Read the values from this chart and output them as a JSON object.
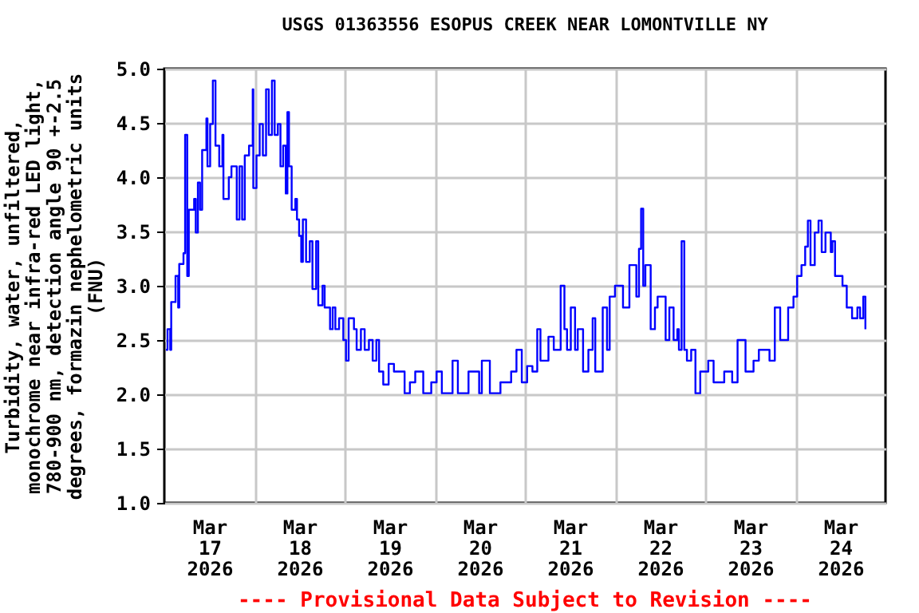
{
  "chart_data": {
    "type": "step",
    "title": "USGS 01363556 ESOPUS CREEK NEAR LOMONTVILLE NY",
    "ylabel": "Turbidity, water, unfiltered,\nmonochrome near infra-red LED light,\n780-900 nm, detection angle 90 +-2.5\ndegrees, formazin nephelometric units\n(FNU)",
    "annotations": [
      "---- Provisional Data Subject to Revision ----"
    ],
    "xlim": [
      "2026-03-17T00:00",
      "2026-03-25T00:00"
    ],
    "xticks": [
      {
        "value": "2026-03-17T12:00",
        "label": "Mar\n17\n2026"
      },
      {
        "value": "2026-03-18T12:00",
        "label": "Mar\n18\n2026"
      },
      {
        "value": "2026-03-19T12:00",
        "label": "Mar\n19\n2026"
      },
      {
        "value": "2026-03-20T12:00",
        "label": "Mar\n20\n2026"
      },
      {
        "value": "2026-03-21T12:00",
        "label": "Mar\n21\n2026"
      },
      {
        "value": "2026-03-22T12:00",
        "label": "Mar\n22\n2026"
      },
      {
        "value": "2026-03-23T12:00",
        "label": "Mar\n23\n2026"
      },
      {
        "value": "2026-03-24T12:00",
        "label": "Mar\n24\n2026"
      },
      {
        "value": "2026-03-18T00:00",
        "label": null
      },
      {
        "value": "2026-03-19T00:00",
        "label": null
      },
      {
        "value": "2026-03-20T00:00",
        "label": null
      },
      {
        "value": "2026-03-21T00:00",
        "label": null
      },
      {
        "value": "2026-03-22T00:00",
        "label": null
      },
      {
        "value": "2026-03-23T00:00",
        "label": null
      },
      {
        "value": "2026-03-24T00:00",
        "label": null
      }
    ],
    "ylim": [
      1,
      5
    ],
    "yticks": [
      {
        "value": 1,
        "label": "1.0"
      },
      {
        "value": 1.5,
        "label": "1.5"
      },
      {
        "value": 2,
        "label": "2.0"
      },
      {
        "value": 2.5,
        "label": "2.5"
      },
      {
        "value": 3,
        "label": "3.0"
      },
      {
        "value": 3.5,
        "label": "3.5"
      },
      {
        "value": 4,
        "label": "4.0"
      },
      {
        "value": 4.5,
        "label": "4.5"
      },
      {
        "value": 5,
        "label": "5.0"
      }
    ],
    "grid": true,
    "series": [
      {
        "color": "#0000ff",
        "x": [
          "2026-03-17T00:26",
          "2026-03-17T00:51",
          "2026-03-17T01:34",
          "2026-03-17T01:50",
          "2026-03-17T02:59",
          "2026-03-17T03:41",
          "2026-03-17T03:58",
          "2026-03-17T05:06",
          "2026-03-17T05:32",
          "2026-03-17T06:06",
          "2026-03-17T06:31",
          "2026-03-17T07:56",
          "2026-03-17T08:22",
          "2026-03-17T08:56",
          "2026-03-17T09:30",
          "2026-03-17T10:04",
          "2026-03-17T11:12",
          "2026-03-17T11:29",
          "2026-03-17T12:12",
          "2026-03-17T12:55",
          "2026-03-17T13:37",
          "2026-03-17T14:37",
          "2026-03-17T15:28",
          "2026-03-17T15:44",
          "2026-03-17T17:10",
          "2026-03-17T17:52",
          "2026-03-17T19:17",
          "2026-03-17T20:00",
          "2026-03-17T20:43",
          "2026-03-17T21:25",
          "2026-03-17T22:33",
          "2026-03-17T23:32",
          "2026-03-17T23:41",
          "2026-03-18T00:32",
          "2026-03-18T01:23",
          "2026-03-18T02:14",
          "2026-03-18T03:05",
          "2026-03-18T03:48",
          "2026-03-18T04:39",
          "2026-03-18T05:22",
          "2026-03-18T06:13",
          "2026-03-18T06:55",
          "2026-03-18T07:38",
          "2026-03-18T08:20",
          "2026-03-18T08:46",
          "2026-03-18T09:11",
          "2026-03-18T09:54",
          "2026-03-18T10:53",
          "2026-03-18T11:19",
          "2026-03-18T11:53",
          "2026-03-18T12:27",
          "2026-03-18T12:53",
          "2026-03-18T13:44",
          "2026-03-18T14:43",
          "2026-03-18T15:26",
          "2026-03-18T16:25",
          "2026-03-18T16:59",
          "2026-03-18T18:07",
          "2026-03-18T18:41",
          "2026-03-18T20:07",
          "2026-03-18T20:49",
          "2026-03-18T21:32",
          "2026-03-18T22:31",
          "2026-03-18T23:39",
          "2026-03-19T00:22",
          "2026-03-19T01:04",
          "2026-03-19T02:29",
          "2026-03-19T03:12",
          "2026-03-19T04:20",
          "2026-03-19T05:20",
          "2026-03-19T06:28",
          "2026-03-19T07:28",
          "2026-03-19T08:27",
          "2026-03-19T09:10",
          "2026-03-19T10:17",
          "2026-03-19T11:43",
          "2026-03-19T13:08",
          "2026-03-19T15:24",
          "2026-03-19T15:58",
          "2026-03-19T17:23",
          "2026-03-19T18:48",
          "2026-03-19T20:56",
          "2026-03-19T23:04",
          "2026-03-20T00:29",
          "2026-03-20T01:53",
          "2026-03-20T04:44",
          "2026-03-20T06:09",
          "2026-03-20T08:59",
          "2026-03-20T11:49",
          "2026-03-20T12:32",
          "2026-03-20T14:40",
          "2026-03-20T17:29",
          "2026-03-20T20:20",
          "2026-03-20T21:45",
          "2026-03-20T23:10",
          "2026-03-21T00:35",
          "2026-03-21T02:00",
          "2026-03-21T03:17",
          "2026-03-21T04:08",
          "2026-03-21T06:16",
          "2026-03-21T07:41",
          "2026-03-21T09:31",
          "2026-03-21T10:31",
          "2026-03-21T11:13",
          "2026-03-21T12:13",
          "2026-03-21T13:21",
          "2026-03-21T14:04",
          "2026-03-21T15:29",
          "2026-03-21T16:54",
          "2026-03-21T18:02",
          "2026-03-21T18:44",
          "2026-03-21T20:43",
          "2026-03-21T21:52",
          "2026-03-21T22:34",
          "2026-03-21T23:59",
          "2026-03-22T02:07",
          "2026-03-22T03:49",
          "2026-03-22T05:40",
          "2026-03-22T06:22",
          "2026-03-22T06:56",
          "2026-03-22T07:30",
          "2026-03-22T08:04",
          "2026-03-22T09:29",
          "2026-03-22T10:37",
          "2026-03-22T11:20",
          "2026-03-22T13:28",
          "2026-03-22T14:27",
          "2026-03-22T15:35",
          "2026-03-22T16:35",
          "2026-03-22T17:00",
          "2026-03-22T17:43",
          "2026-03-22T18:26",
          "2026-03-22T19:08",
          "2026-03-22T20:16",
          "2026-03-22T21:24",
          "2026-03-22T22:41",
          "2026-03-23T00:49",
          "2026-03-23T02:14",
          "2026-03-23T05:04",
          "2026-03-23T07:11",
          "2026-03-23T08:37",
          "2026-03-23T10:44",
          "2026-03-23T12:52",
          "2026-03-23T14:17",
          "2026-03-23T15:42",
          "2026-03-23T17:07",
          "2026-03-23T18:32",
          "2026-03-23T19:58",
          "2026-03-23T22:05",
          "2026-03-23T23:30",
          "2026-03-24T00:29",
          "2026-03-24T01:38",
          "2026-03-24T02:37",
          "2026-03-24T03:20",
          "2026-03-24T04:02",
          "2026-03-24T05:10",
          "2026-03-24T06:10",
          "2026-03-24T07:01",
          "2026-03-24T08:01",
          "2026-03-24T09:26",
          "2026-03-24T09:51",
          "2026-03-24T10:34",
          "2026-03-24T12:33",
          "2026-03-24T13:41",
          "2026-03-24T15:06",
          "2026-03-24T16:31",
          "2026-03-24T17:14",
          "2026-03-24T18:05",
          "2026-03-24T18:39"
        ],
        "values": [
          2.41,
          2.6,
          2.41,
          2.85,
          3.09,
          2.8,
          3.2,
          3.3,
          4.39,
          3.09,
          3.7,
          3.8,
          3.49,
          3.95,
          3.7,
          4.25,
          4.54,
          4.1,
          4.49,
          4.89,
          4.29,
          4.1,
          4.39,
          3.8,
          4.0,
          4.1,
          3.61,
          4.1,
          3.61,
          4.2,
          4.29,
          4.81,
          3.9,
          4.2,
          4.49,
          4.2,
          4.81,
          4.39,
          4.89,
          4.39,
          4.49,
          4.1,
          4.29,
          3.85,
          4.6,
          4.1,
          3.7,
          3.8,
          3.61,
          3.46,
          3.22,
          3.61,
          3.22,
          3.41,
          2.97,
          3.41,
          2.82,
          3.0,
          2.8,
          2.6,
          2.8,
          2.6,
          2.7,
          2.5,
          2.31,
          2.7,
          2.6,
          2.41,
          2.6,
          2.41,
          2.5,
          2.31,
          2.5,
          2.21,
          2.09,
          2.28,
          2.21,
          2.21,
          2.01,
          2.11,
          2.21,
          2.01,
          2.11,
          2.21,
          2.01,
          2.31,
          2.01,
          2.21,
          2.01,
          2.31,
          2.01,
          2.11,
          2.21,
          2.41,
          2.11,
          2.26,
          2.21,
          2.6,
          2.31,
          2.53,
          2.41,
          3.0,
          2.6,
          2.41,
          2.8,
          2.41,
          2.6,
          2.21,
          2.41,
          2.7,
          2.21,
          2.8,
          2.41,
          2.9,
          3.0,
          2.8,
          3.19,
          2.9,
          3.34,
          3.71,
          3.0,
          3.19,
          2.6,
          2.8,
          2.9,
          2.5,
          2.8,
          2.5,
          2.6,
          2.41,
          3.41,
          2.41,
          2.31,
          2.41,
          2.01,
          2.21,
          2.31,
          2.11,
          2.21,
          2.11,
          2.5,
          2.21,
          2.31,
          2.41,
          2.41,
          2.31,
          2.8,
          2.5,
          2.8,
          2.9,
          3.09,
          3.19,
          3.36,
          3.6,
          3.19,
          3.49,
          3.6,
          3.31,
          3.49,
          3.31,
          3.41,
          3.09,
          3.0,
          2.8,
          2.7,
          2.8,
          2.7,
          2.9,
          2.6
        ]
      }
    ]
  }
}
